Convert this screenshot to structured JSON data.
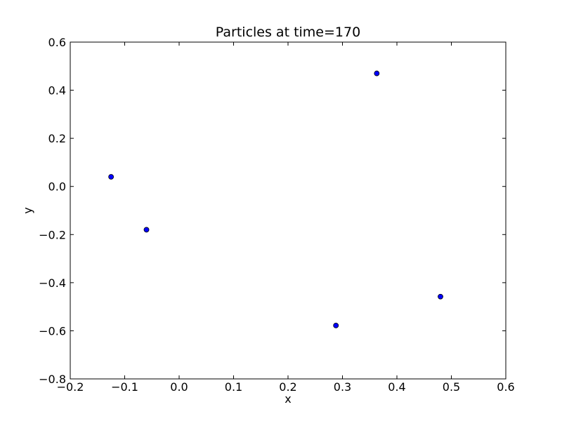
{
  "chart_data": {
    "type": "scatter",
    "title": "Particles at time=170",
    "xlabel": "x",
    "ylabel": "y",
    "xlim": [
      -0.2,
      0.6
    ],
    "ylim": [
      -0.8,
      0.6
    ],
    "xticks": [
      -0.2,
      -0.1,
      0.0,
      0.1,
      0.2,
      0.3,
      0.4,
      0.5,
      0.6
    ],
    "yticks": [
      -0.8,
      -0.6,
      -0.4,
      -0.2,
      0.0,
      0.2,
      0.4,
      0.6
    ],
    "xtick_labels": [
      "−0.2",
      "−0.1",
      "0.0",
      "0.1",
      "0.2",
      "0.3",
      "0.4",
      "0.5",
      "0.6"
    ],
    "ytick_labels": [
      "−0.8",
      "−0.6",
      "−0.4",
      "−0.2",
      "0.0",
      "0.2",
      "0.4",
      "0.6"
    ],
    "grid": false,
    "marker_color": "#0000ff",
    "points": [
      {
        "x": -0.125,
        "y": 0.04
      },
      {
        "x": -0.06,
        "y": -0.18
      },
      {
        "x": 0.288,
        "y": -0.578
      },
      {
        "x": 0.363,
        "y": 0.47
      },
      {
        "x": 0.48,
        "y": -0.458
      }
    ]
  }
}
